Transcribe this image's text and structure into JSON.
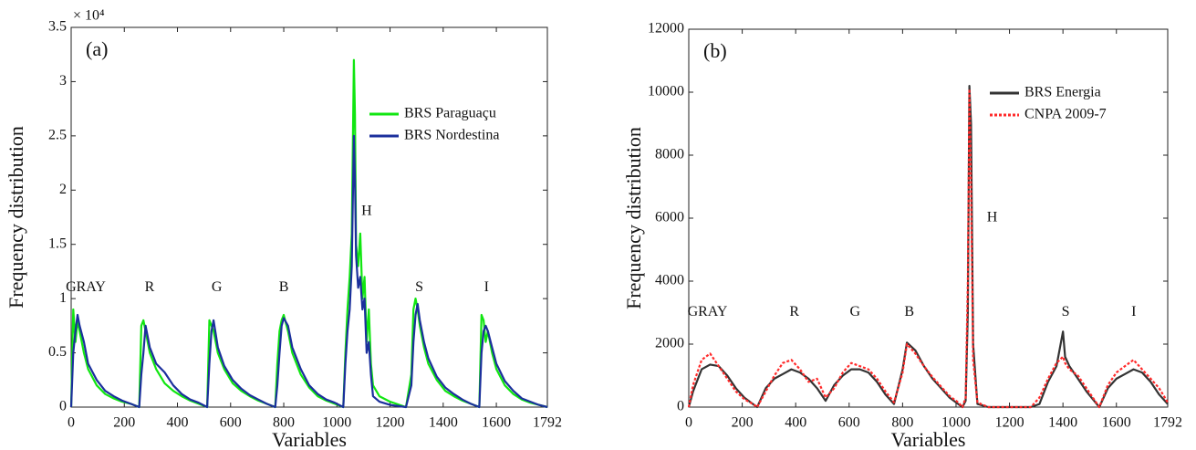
{
  "chart_data": [
    {
      "type": "line",
      "panel_label": "(a)",
      "x_label": "Variables",
      "y_label": "Frequency distribution",
      "y_multiplier": "× 10⁴",
      "xlim": [
        0,
        1792
      ],
      "xticks": [
        0,
        200,
        400,
        600,
        800,
        1000,
        1200,
        1400,
        1600,
        1792
      ],
      "ylim": [
        0,
        3.5
      ],
      "yticks": [
        0,
        0.5,
        1,
        1.5,
        2,
        2.5,
        3,
        3.5
      ],
      "grid": false,
      "legend": "upper right",
      "annotations": [
        {
          "text": "GRAY",
          "x": 55,
          "y": 1.1
        },
        {
          "text": "R",
          "x": 295,
          "y": 1.1
        },
        {
          "text": "G",
          "x": 548,
          "y": 1.1
        },
        {
          "text": "B",
          "x": 800,
          "y": 1.1
        },
        {
          "text": "H",
          "x": 1112,
          "y": 1.8
        },
        {
          "text": "S",
          "x": 1310,
          "y": 1.1
        },
        {
          "text": "I",
          "x": 1563,
          "y": 1.1
        }
      ],
      "x": [
        0,
        8,
        16,
        24,
        32,
        48,
        64,
        96,
        128,
        160,
        192,
        224,
        256,
        264,
        272,
        280,
        296,
        320,
        352,
        384,
        416,
        448,
        480,
        512,
        520,
        528,
        536,
        552,
        576,
        608,
        640,
        672,
        704,
        736,
        768,
        776,
        784,
        792,
        800,
        816,
        832,
        864,
        896,
        928,
        960,
        992,
        1024,
        1032,
        1040,
        1048,
        1056,
        1064,
        1068,
        1072,
        1080,
        1088,
        1096,
        1104,
        1112,
        1120,
        1128,
        1136,
        1160,
        1200,
        1260,
        1280,
        1288,
        1296,
        1304,
        1312,
        1328,
        1344,
        1376,
        1408,
        1440,
        1472,
        1504,
        1536,
        1544,
        1552,
        1560,
        1568,
        1584,
        1600,
        1632,
        1664,
        1696,
        1728,
        1760,
        1792
      ],
      "series": [
        {
          "name": "BRS Paraguaçu",
          "color": "#11e611",
          "values": [
            0,
            0.9,
            0.6,
            0.8,
            0.7,
            0.5,
            0.35,
            0.2,
            0.12,
            0.08,
            0.05,
            0.03,
            0,
            0.75,
            0.8,
            0.7,
            0.5,
            0.35,
            0.22,
            0.15,
            0.1,
            0.06,
            0.03,
            0,
            0.8,
            0.75,
            0.7,
            0.5,
            0.35,
            0.22,
            0.15,
            0.1,
            0.06,
            0.03,
            0,
            0.4,
            0.7,
            0.8,
            0.85,
            0.7,
            0.5,
            0.3,
            0.18,
            0.1,
            0.06,
            0.03,
            0,
            0.5,
            0.9,
            1.2,
            1.6,
            3.2,
            2.7,
            1.5,
            1.3,
            1.6,
            1.0,
            1.2,
            0.6,
            0.9,
            0.4,
            0.2,
            0.1,
            0.05,
            0,
            0.3,
            0.9,
            1.0,
            0.9,
            0.75,
            0.55,
            0.4,
            0.25,
            0.15,
            0.1,
            0.06,
            0.03,
            0,
            0.85,
            0.8,
            0.6,
            0.7,
            0.5,
            0.35,
            0.2,
            0.12,
            0.07,
            0.04,
            0.02,
            0
          ]
        },
        {
          "name": "BRS Nordestina",
          "color": "#1b2f9c",
          "values": [
            0,
            0.5,
            0.7,
            0.85,
            0.75,
            0.6,
            0.4,
            0.25,
            0.15,
            0.1,
            0.06,
            0.03,
            0,
            0.3,
            0.5,
            0.75,
            0.55,
            0.4,
            0.32,
            0.2,
            0.12,
            0.07,
            0.04,
            0,
            0.4,
            0.7,
            0.8,
            0.55,
            0.38,
            0.25,
            0.17,
            0.11,
            0.07,
            0.03,
            0,
            0.2,
            0.5,
            0.75,
            0.82,
            0.75,
            0.55,
            0.35,
            0.2,
            0.12,
            0.07,
            0.04,
            0,
            0.4,
            0.7,
            0.9,
            1.3,
            2.5,
            2.1,
            1.4,
            1.1,
            1.2,
            0.9,
            1.0,
            0.5,
            0.6,
            0.3,
            0.1,
            0.05,
            0.02,
            0,
            0.2,
            0.6,
            0.85,
            0.95,
            0.8,
            0.6,
            0.45,
            0.28,
            0.18,
            0.12,
            0.07,
            0.03,
            0,
            0.5,
            0.7,
            0.75,
            0.7,
            0.55,
            0.4,
            0.24,
            0.15,
            0.08,
            0.05,
            0.02,
            0
          ]
        }
      ]
    },
    {
      "type": "line",
      "panel_label": "(b)",
      "x_label": "Variables",
      "y_label": "Frequency distribution",
      "xlim": [
        0,
        1792
      ],
      "xticks": [
        0,
        200,
        400,
        600,
        800,
        1000,
        1200,
        1400,
        1600,
        1792
      ],
      "ylim": [
        0,
        12000
      ],
      "yticks": [
        0,
        2000,
        4000,
        6000,
        8000,
        10000,
        12000
      ],
      "grid": false,
      "legend": "upper right",
      "annotations": [
        {
          "text": "GRAY",
          "x": 70,
          "y": 3000
        },
        {
          "text": "R",
          "x": 395,
          "y": 3000
        },
        {
          "text": "G",
          "x": 622,
          "y": 3000
        },
        {
          "text": "B",
          "x": 825,
          "y": 3000
        },
        {
          "text": "H",
          "x": 1135,
          "y": 6000
        },
        {
          "text": "S",
          "x": 1410,
          "y": 3000
        },
        {
          "text": "I",
          "x": 1665,
          "y": 3000
        }
      ],
      "x": [
        0,
        16,
        48,
        80,
        112,
        144,
        176,
        208,
        240,
        256,
        288,
        320,
        352,
        384,
        416,
        448,
        480,
        512,
        544,
        576,
        608,
        640,
        672,
        704,
        736,
        768,
        800,
        816,
        848,
        880,
        912,
        944,
        976,
        1008,
        1024,
        1036,
        1044,
        1050,
        1056,
        1064,
        1080,
        1120,
        1200,
        1280,
        1312,
        1344,
        1376,
        1400,
        1408,
        1424,
        1456,
        1488,
        1536,
        1568,
        1600,
        1632,
        1664,
        1696,
        1728,
        1760,
        1792
      ],
      "series": [
        {
          "name": "BRS Energia",
          "color": "#333333",
          "values": [
            0,
            500,
            1200,
            1350,
            1300,
            1000,
            600,
            300,
            100,
            0,
            600,
            900,
            1050,
            1200,
            1100,
            900,
            600,
            200,
            700,
            1000,
            1200,
            1200,
            1100,
            800,
            400,
            100,
            1200,
            2050,
            1800,
            1300,
            900,
            600,
            300,
            100,
            0,
            200,
            3000,
            10200,
            9000,
            2000,
            100,
            0,
            0,
            0,
            100,
            800,
            1300,
            2400,
            1600,
            1300,
            900,
            500,
            0,
            600,
            900,
            1050,
            1200,
            1100,
            800,
            400,
            100
          ]
        },
        {
          "name": "CNPA 2009-7",
          "color": "#ff2a2a",
          "values": [
            0,
            700,
            1500,
            1700,
            1300,
            900,
            500,
            250,
            100,
            0,
            500,
            1000,
            1400,
            1500,
            1200,
            800,
            900,
            300,
            600,
            1100,
            1400,
            1300,
            1200,
            900,
            500,
            150,
            1100,
            2000,
            1700,
            1300,
            950,
            650,
            350,
            150,
            0,
            300,
            4000,
            10100,
            7000,
            1500,
            150,
            0,
            0,
            0,
            300,
            900,
            1400,
            1600,
            1400,
            1200,
            1000,
            600,
            0,
            700,
            1100,
            1300,
            1500,
            1200,
            900,
            600,
            150
          ]
        }
      ]
    }
  ]
}
